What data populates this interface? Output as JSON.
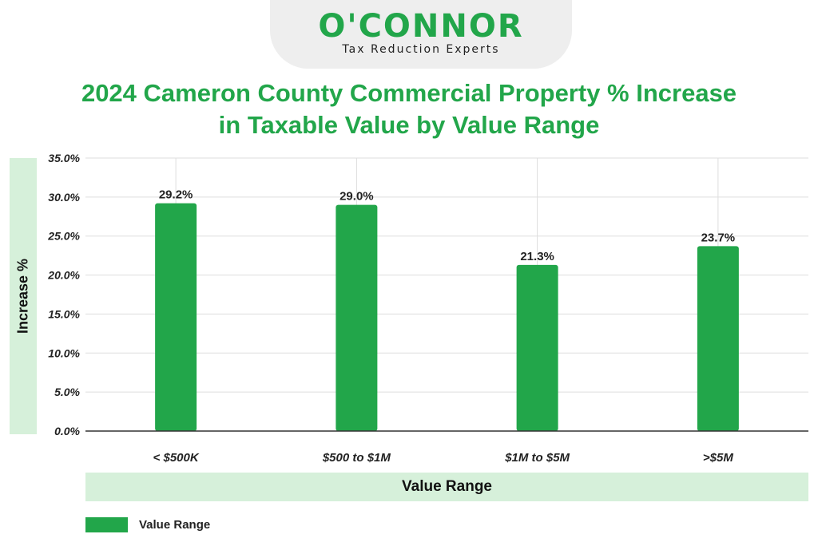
{
  "logo": {
    "name": "O'CONNOR",
    "tagline": "Tax Reduction Experts"
  },
  "colors": {
    "accent": "#22a64a",
    "band": "#d6f0da",
    "grid": "#dddddd",
    "text": "#222222"
  },
  "chart_data": {
    "type": "bar",
    "title_lines": [
      "2024 Cameron County Commercial Property % Increase",
      "in Taxable Value by Value Range"
    ],
    "xlabel": "Value Range",
    "ylabel": "Increase %",
    "categories": [
      "< $500K",
      "$500 to $1M",
      "$1M to $5M",
      ">$5M"
    ],
    "series": [
      {
        "name": "Value Range",
        "values": [
          29.2,
          29.0,
          21.3,
          23.7
        ],
        "labels": [
          "29.2%",
          "29.0%",
          "21.3%",
          "23.7%"
        ],
        "color": "#22a64a"
      }
    ],
    "ylim": [
      0,
      35
    ],
    "yticks": [
      0,
      5,
      10,
      15,
      20,
      25,
      30,
      35
    ],
    "ytick_labels": [
      "0.0%",
      "5.0%",
      "10.0%",
      "15.0%",
      "20.0%",
      "25.0%",
      "30.0%",
      "35.0%"
    ],
    "grid": true,
    "legend": "bottom-left"
  }
}
